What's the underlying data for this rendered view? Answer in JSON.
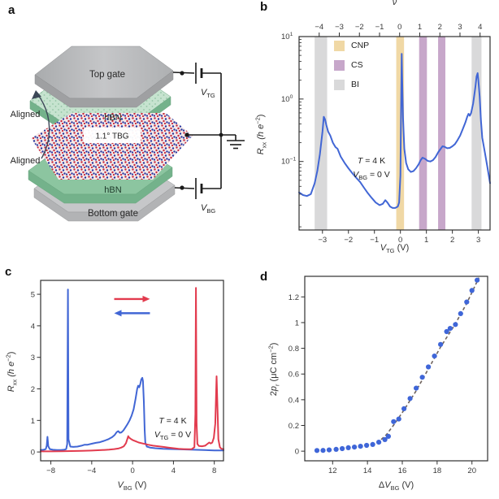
{
  "panel_labels": {
    "a": "a",
    "b": "b",
    "c": "c",
    "d": "d"
  },
  "panel_a": {
    "labels": {
      "top_gate": "Top gate",
      "hbn_top": "hBN",
      "tbg": "1.1° TBG",
      "hbn_bottom": "hBN",
      "bottom_gate": "Bottom gate",
      "aligned_top": "Aligned",
      "aligned_bottom": "Aligned",
      "vtg_main": "V",
      "vtg_sub": "TG",
      "vbg_main": "V",
      "vbg_sub": "BG"
    },
    "colors": {
      "gate_top": "#bcbdbf",
      "gate_front": "#a0a1a3",
      "hbn_top": "#8cc5a0",
      "hbn_front": "#74b28b",
      "wire": "#1a1a1a"
    }
  },
  "chart_data": [
    {
      "id": "b",
      "type": "line",
      "y_scale": "log",
      "xlim": [
        -3.9,
        3.45
      ],
      "ylim": [
        0.008,
        10
      ],
      "x_ticks": [
        -3,
        -2,
        -1,
        0,
        1,
        2,
        3
      ],
      "y_tick_exponents": [
        1,
        0,
        -1
      ],
      "top_axis": {
        "label": "ν",
        "ticks": [
          -4,
          -3,
          -2,
          -1,
          0,
          1,
          2,
          3,
          4
        ],
        "v0": -0.03,
        "slope": 0.774
      },
      "xlabel": {
        "main": "V",
        "sub": "TG",
        "rest": " (V)"
      },
      "ylabel": {
        "main": "R",
        "sub": "xx",
        "rest": " (h e",
        "sup": "−2",
        "close": ")"
      },
      "legend": [
        {
          "label": "CNP",
          "color": "#f0d8a5"
        },
        {
          "label": "CS",
          "color": "#c7a7ca"
        },
        {
          "label": "BI",
          "color": "#d9d9da"
        }
      ],
      "bands": [
        {
          "from": -3.3,
          "to": -2.82,
          "type": "BI",
          "color": "#d9d9da"
        },
        {
          "from": -0.16,
          "to": 0.14,
          "type": "CNP",
          "color": "#f0d8a5"
        },
        {
          "from": 0.72,
          "to": 1.02,
          "type": "CS",
          "color": "#c7a7ca"
        },
        {
          "from": 1.45,
          "to": 1.73,
          "type": "CS",
          "color": "#c7a7ca"
        },
        {
          "from": 2.74,
          "to": 3.12,
          "type": "BI",
          "color": "#d9d9da"
        }
      ],
      "annotation": {
        "t": "T",
        "t_rest": " = 4 K",
        "v": "V",
        "v_sub": "BG",
        "v_rest": " = 0 V"
      },
      "series": [
        {
          "name": "Rxx-vs-Vtg",
          "color": "#4166d5",
          "points": [
            [
              -3.9,
              0.032
            ],
            [
              -3.75,
              0.029
            ],
            [
              -3.6,
              0.028
            ],
            [
              -3.45,
              0.03
            ],
            [
              -3.3,
              0.045
            ],
            [
              -3.2,
              0.07
            ],
            [
              -3.1,
              0.13
            ],
            [
              -3.0,
              0.3
            ],
            [
              -2.95,
              0.52
            ],
            [
              -2.9,
              0.47
            ],
            [
              -2.85,
              0.38
            ],
            [
              -2.78,
              0.3
            ],
            [
              -2.7,
              0.26
            ],
            [
              -2.6,
              0.2
            ],
            [
              -2.5,
              0.17
            ],
            [
              -2.42,
              0.16
            ],
            [
              -2.3,
              0.12
            ],
            [
              -2.15,
              0.095
            ],
            [
              -2.0,
              0.078
            ],
            [
              -1.85,
              0.065
            ],
            [
              -1.7,
              0.055
            ],
            [
              -1.55,
              0.047
            ],
            [
              -1.4,
              0.038
            ],
            [
              -1.25,
              0.031
            ],
            [
              -1.1,
              0.026
            ],
            [
              -0.95,
              0.022
            ],
            [
              -0.8,
              0.02
            ],
            [
              -0.68,
              0.021
            ],
            [
              -0.58,
              0.024
            ],
            [
              -0.5,
              0.022
            ],
            [
              -0.4,
              0.019
            ],
            [
              -0.3,
              0.018
            ],
            [
              -0.2,
              0.018
            ],
            [
              -0.1,
              0.019
            ],
            [
              -0.05,
              0.022
            ],
            [
              0.0,
              0.06
            ],
            [
              0.03,
              1.2
            ],
            [
              0.05,
              5.3
            ],
            [
              0.07,
              2.0
            ],
            [
              0.1,
              0.5
            ],
            [
              0.15,
              0.16
            ],
            [
              0.22,
              0.095
            ],
            [
              0.3,
              0.075
            ],
            [
              0.4,
              0.068
            ],
            [
              0.5,
              0.07
            ],
            [
              0.6,
              0.078
            ],
            [
              0.7,
              0.09
            ],
            [
              0.78,
              0.105
            ],
            [
              0.85,
              0.115
            ],
            [
              0.95,
              0.11
            ],
            [
              1.05,
              0.102
            ],
            [
              1.15,
              0.1
            ],
            [
              1.25,
              0.105
            ],
            [
              1.35,
              0.118
            ],
            [
              1.45,
              0.14
            ],
            [
              1.55,
              0.16
            ],
            [
              1.62,
              0.175
            ],
            [
              1.7,
              0.172
            ],
            [
              1.8,
              0.163
            ],
            [
              1.9,
              0.165
            ],
            [
              2.0,
              0.175
            ],
            [
              2.1,
              0.19
            ],
            [
              2.2,
              0.22
            ],
            [
              2.3,
              0.26
            ],
            [
              2.4,
              0.33
            ],
            [
              2.5,
              0.42
            ],
            [
              2.57,
              0.52
            ],
            [
              2.62,
              0.58
            ],
            [
              2.67,
              0.54
            ],
            [
              2.72,
              0.6
            ],
            [
              2.8,
              0.85
            ],
            [
              2.88,
              1.5
            ],
            [
              2.93,
              2.3
            ],
            [
              2.97,
              2.6
            ],
            [
              3.0,
              2.0
            ],
            [
              3.05,
              1.1
            ],
            [
              3.1,
              0.45
            ],
            [
              3.15,
              0.24
            ],
            [
              3.25,
              0.14
            ],
            [
              3.35,
              0.08
            ],
            [
              3.45,
              0.045
            ]
          ]
        }
      ]
    },
    {
      "id": "c",
      "type": "line",
      "y_scale": "linear",
      "xlim": [
        -9,
        8.9
      ],
      "ylim": [
        -0.28,
        5.44
      ],
      "x_ticks": [
        -8,
        -4,
        0,
        4,
        8
      ],
      "y_ticks": [
        0,
        1,
        2,
        3,
        4,
        5
      ],
      "xlabel": {
        "main": "V",
        "sub": "BG",
        "rest": " (V)"
      },
      "ylabel": {
        "main": "R",
        "sub": "xx",
        "rest": " (h e",
        "sup": "−2",
        "close": ")"
      },
      "annotation": {
        "t": "T",
        "t_rest": " = 4 K",
        "v": "V",
        "v_sub": "TG",
        "v_rest": " = 0 V"
      },
      "sweep_arrows": [
        {
          "name": "sweep-right",
          "color": "#e23b4e",
          "x1": -1.8,
          "x2": 1.7,
          "y": 4.85
        },
        {
          "name": "sweep-left",
          "color": "#4166d5",
          "x1": 1.7,
          "x2": -1.8,
          "y": 4.4
        }
      ],
      "series": [
        {
          "name": "sweep-down",
          "color": "#4166d5",
          "points": [
            [
              -9,
              0.06
            ],
            [
              -8.7,
              0.07
            ],
            [
              -8.5,
              0.09
            ],
            [
              -8.4,
              0.2
            ],
            [
              -8.33,
              0.48
            ],
            [
              -8.25,
              0.18
            ],
            [
              -8.1,
              0.09
            ],
            [
              -7.8,
              0.07
            ],
            [
              -7.4,
              0.06
            ],
            [
              -7.0,
              0.06
            ],
            [
              -6.7,
              0.07
            ],
            [
              -6.5,
              0.09
            ],
            [
              -6.4,
              0.25
            ],
            [
              -6.33,
              5.15
            ],
            [
              -6.27,
              0.4
            ],
            [
              -6.1,
              0.17
            ],
            [
              -5.8,
              0.16
            ],
            [
              -5.4,
              0.17
            ],
            [
              -5.0,
              0.2
            ],
            [
              -4.7,
              0.23
            ],
            [
              -4.4,
              0.23
            ],
            [
              -4.0,
              0.26
            ],
            [
              -3.6,
              0.29
            ],
            [
              -3.2,
              0.31
            ],
            [
              -2.8,
              0.35
            ],
            [
              -2.4,
              0.4
            ],
            [
              -2.0,
              0.47
            ],
            [
              -1.75,
              0.54
            ],
            [
              -1.55,
              0.63
            ],
            [
              -1.4,
              0.66
            ],
            [
              -1.25,
              0.61
            ],
            [
              -1.1,
              0.62
            ],
            [
              -0.9,
              0.68
            ],
            [
              -0.7,
              0.78
            ],
            [
              -0.5,
              0.88
            ],
            [
              -0.3,
              1.0
            ],
            [
              -0.1,
              1.15
            ],
            [
              0.1,
              1.35
            ],
            [
              0.3,
              1.7
            ],
            [
              0.45,
              2.0
            ],
            [
              0.55,
              2.1
            ],
            [
              0.65,
              2.05
            ],
            [
              0.75,
              2.15
            ],
            [
              0.85,
              2.3
            ],
            [
              0.95,
              2.35
            ],
            [
              1.02,
              2.25
            ],
            [
              1.1,
              1.6
            ],
            [
              1.18,
              0.7
            ],
            [
              1.25,
              0.3
            ],
            [
              1.4,
              0.17
            ],
            [
              1.7,
              0.14
            ],
            [
              2.2,
              0.12
            ],
            [
              3.0,
              0.1
            ],
            [
              4.0,
              0.09
            ],
            [
              5.0,
              0.08
            ],
            [
              6.0,
              0.07
            ],
            [
              7.0,
              0.06
            ],
            [
              8.0,
              0.05
            ],
            [
              8.9,
              0.05
            ]
          ]
        },
        {
          "name": "sweep-up",
          "color": "#e23b4e",
          "points": [
            [
              -9,
              0.02
            ],
            [
              -8,
              0.02
            ],
            [
              -7,
              0.025
            ],
            [
              -6,
              0.03
            ],
            [
              -5,
              0.035
            ],
            [
              -4,
              0.045
            ],
            [
              -3,
              0.06
            ],
            [
              -2.3,
              0.075
            ],
            [
              -1.8,
              0.09
            ],
            [
              -1.4,
              0.11
            ],
            [
              -1.1,
              0.14
            ],
            [
              -0.85,
              0.18
            ],
            [
              -0.65,
              0.28
            ],
            [
              -0.5,
              0.42
            ],
            [
              -0.42,
              0.5
            ],
            [
              -0.35,
              0.46
            ],
            [
              -0.2,
              0.42
            ],
            [
              0.0,
              0.38
            ],
            [
              0.3,
              0.34
            ],
            [
              0.6,
              0.3
            ],
            [
              1.0,
              0.27
            ],
            [
              1.5,
              0.23
            ],
            [
              2.0,
              0.2
            ],
            [
              2.5,
              0.18
            ],
            [
              3.0,
              0.16
            ],
            [
              3.5,
              0.14
            ],
            [
              4.0,
              0.12
            ],
            [
              4.5,
              0.1
            ],
            [
              5.0,
              0.09
            ],
            [
              5.5,
              0.085
            ],
            [
              5.8,
              0.09
            ],
            [
              6.05,
              0.15
            ],
            [
              6.15,
              1.2
            ],
            [
              6.2,
              5.2
            ],
            [
              6.27,
              0.9
            ],
            [
              6.35,
              0.25
            ],
            [
              6.5,
              0.19
            ],
            [
              6.8,
              0.18
            ],
            [
              7.1,
              0.2
            ],
            [
              7.35,
              0.26
            ],
            [
              7.5,
              0.3
            ],
            [
              7.65,
              0.27
            ],
            [
              7.8,
              0.3
            ],
            [
              7.95,
              0.45
            ],
            [
              8.1,
              0.9
            ],
            [
              8.22,
              2.4
            ],
            [
              8.3,
              1.5
            ],
            [
              8.4,
              0.4
            ],
            [
              8.55,
              0.15
            ],
            [
              8.7,
              0.1
            ],
            [
              8.9,
              0.09
            ]
          ]
        }
      ]
    },
    {
      "id": "d",
      "type": "scatter",
      "y_scale": "linear",
      "xlim": [
        10.4,
        20.9
      ],
      "ylim": [
        -0.075,
        1.36
      ],
      "x_ticks": [
        12,
        14,
        16,
        18,
        20
      ],
      "y_ticks": [
        0,
        0.2,
        0.4,
        0.6,
        0.8,
        1.0,
        1.2
      ],
      "xlabel": {
        "pre": "Δ",
        "main": "V",
        "sub": "BG",
        "rest": " (V)"
      },
      "ylabel": {
        "pre": "2",
        "main": "p",
        "sub": "r",
        "rest": " (μC cm",
        "sup": "−2",
        "close": ")"
      },
      "marker_color": "#3f66d8",
      "dash_color": "#6e625c",
      "dashed_line": [
        [
          14.55,
          0.06
        ],
        [
          15.1,
          0.13
        ],
        [
          15.6,
          0.22
        ],
        [
          16.1,
          0.32
        ],
        [
          16.8,
          0.47
        ],
        [
          17.5,
          0.64
        ],
        [
          18.2,
          0.81
        ],
        [
          19.0,
          0.98
        ],
        [
          19.7,
          1.15
        ],
        [
          20.4,
          1.35
        ]
      ],
      "points": [
        [
          11.1,
          0.005
        ],
        [
          11.45,
          0.006
        ],
        [
          11.8,
          0.01
        ],
        [
          12.2,
          0.014
        ],
        [
          12.55,
          0.02
        ],
        [
          12.9,
          0.027
        ],
        [
          13.25,
          0.032
        ],
        [
          13.6,
          0.038
        ],
        [
          13.95,
          0.045
        ],
        [
          14.3,
          0.052
        ],
        [
          14.65,
          0.07
        ],
        [
          15.0,
          0.09
        ],
        [
          15.2,
          0.115
        ],
        [
          15.5,
          0.23
        ],
        [
          15.8,
          0.25
        ],
        [
          16.1,
          0.33
        ],
        [
          16.45,
          0.41
        ],
        [
          16.8,
          0.49
        ],
        [
          17.15,
          0.575
        ],
        [
          17.5,
          0.655
        ],
        [
          17.85,
          0.74
        ],
        [
          18.2,
          0.83
        ],
        [
          18.55,
          0.93
        ],
        [
          18.75,
          0.955
        ],
        [
          19.05,
          0.985
        ],
        [
          19.35,
          1.07
        ],
        [
          19.7,
          1.16
        ],
        [
          20.0,
          1.25
        ],
        [
          20.3,
          1.33
        ]
      ]
    }
  ]
}
